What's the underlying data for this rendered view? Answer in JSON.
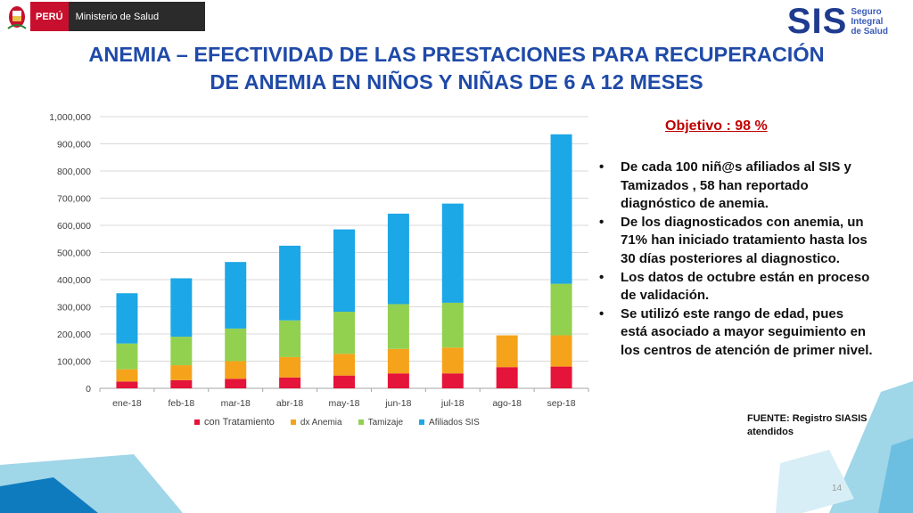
{
  "header": {
    "gov_logo": {
      "country": "PERÚ",
      "ministry": "Ministerio de Salud"
    },
    "sis_logo": {
      "mark": "SIS",
      "line1": "Seguro",
      "line2": "Integral",
      "line3": "de Salud"
    }
  },
  "title": {
    "line1": "ANEMIA – EFECTIVIDAD DE LAS PRESTACIONES PARA RECUPERACIÓN",
    "line2": "DE ANEMIA EN NIÑOS Y NIÑAS DE 6 A 12 MESES"
  },
  "objetivo": "Objetivo : 98 %",
  "bullets": [
    "De cada 100 niñ@s afiliados al SIS y Tamizados , 58 han reportado diagnóstico de anemia.",
    "De los diagnosticados con anemia, un 71% han iniciado tratamiento hasta los 30 días posteriores al diagnostico.",
    "Los datos de octubre están en proceso de validación.",
    "Se utilizó este rango de edad, pues está asociado a mayor seguimiento en los centros de atención de primer nivel."
  ],
  "fuente": "FUENTE: Registro SIASIS atendidos",
  "page_number": "14",
  "colors": {
    "title": "#1f4aa8",
    "objetivo": "#c00000",
    "deco_light": "#9fd6e8",
    "deco_dark": "#0f7bbf"
  },
  "chart_data": {
    "type": "bar",
    "stacked": true,
    "categories": [
      "ene-18",
      "feb-18",
      "mar-18",
      "abr-18",
      "may-18",
      "jun-18",
      "jul-18",
      "ago-18",
      "sep-18"
    ],
    "series": [
      {
        "name": "con Tratamiento",
        "color": "#e4143a",
        "values": [
          25000,
          30000,
          35000,
          40000,
          47000,
          55000,
          55000,
          78000,
          80000
        ]
      },
      {
        "name": "dx Anemia",
        "color": "#f5a31a",
        "values": [
          45000,
          55000,
          65000,
          75000,
          80000,
          90000,
          95000,
          117000,
          115000
        ]
      },
      {
        "name": "Tamizaje",
        "color": "#92d050",
        "values": [
          95000,
          105000,
          120000,
          135000,
          155000,
          165000,
          165000,
          0,
          190000
        ]
      },
      {
        "name": "Afiliados SIS",
        "color": "#1ca7e6",
        "values": [
          185000,
          215000,
          245000,
          275000,
          303000,
          333000,
          365000,
          0,
          550000
        ]
      }
    ],
    "ylim": [
      0,
      1000000
    ],
    "yticks": [
      "0",
      "100,000",
      "200,000",
      "300,000",
      "400,000",
      "500,000",
      "600,000",
      "700,000",
      "800,000",
      "900,000",
      "1,000,000"
    ],
    "grid": true,
    "legend": "bottom",
    "title": "",
    "xlabel": "",
    "ylabel": ""
  }
}
